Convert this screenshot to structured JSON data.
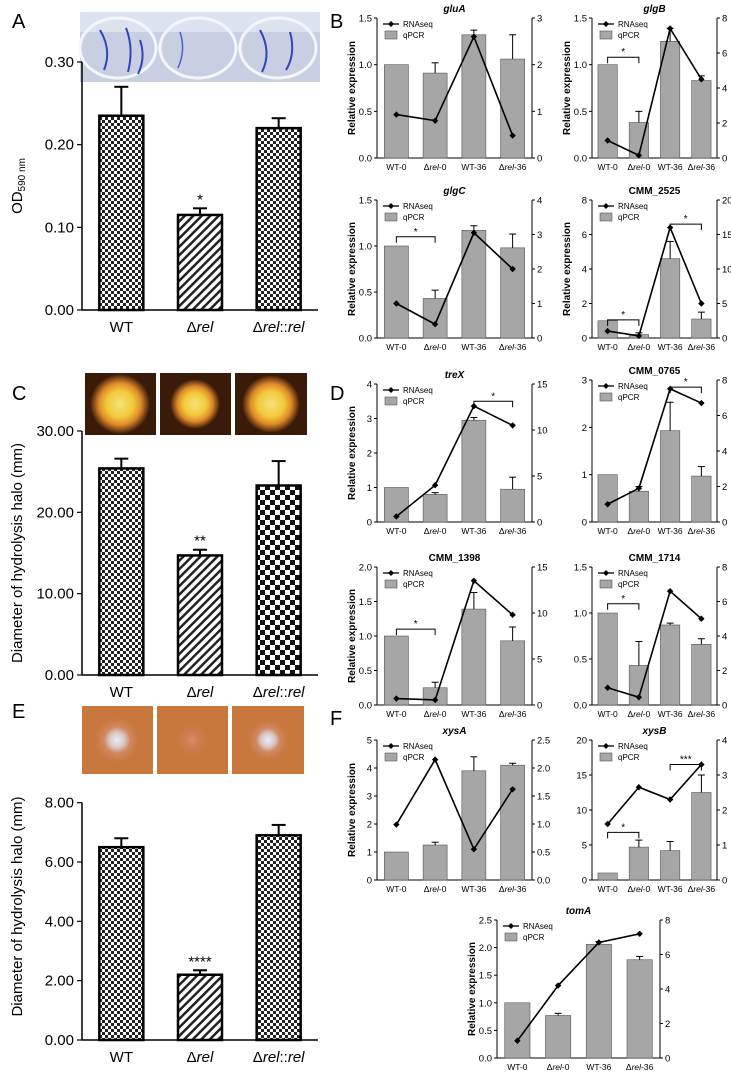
{
  "panel_letters": [
    "A",
    "B",
    "C",
    "D",
    "E",
    "F"
  ],
  "left_panels": [
    {
      "letter": "A",
      "photo": "biofilm-wells-photo",
      "ylabel": "OD590 nm",
      "ylabel_main": "OD",
      "ylabel_sub": "590 nm",
      "yticks": [
        "0.00",
        "0.10",
        "0.20",
        "0.30"
      ],
      "yrange": [
        0,
        0.3
      ],
      "categories": [
        "WT",
        "Δrel",
        "Δrel::rel"
      ],
      "values": [
        0.235,
        0.115,
        0.22
      ],
      "errors": [
        0.035,
        0.008,
        0.012
      ],
      "sig": [
        "",
        "*",
        ""
      ],
      "patterns": [
        "checker-small",
        "hatch",
        "checker-small"
      ]
    },
    {
      "letter": "C",
      "photo": "starch-halo-photos",
      "ylabel": "Diameter of hydrolysis halo (mm)",
      "yticks": [
        "0.00",
        "10.00",
        "20.00",
        "30.00"
      ],
      "yrange": [
        0,
        30
      ],
      "categories": [
        "WT",
        "Δrel",
        "Δrel::rel"
      ],
      "values": [
        25.4,
        14.7,
        23.3
      ],
      "errors": [
        1.2,
        0.7,
        3.0
      ],
      "sig": [
        "",
        "**",
        ""
      ],
      "patterns": [
        "checker-small",
        "hatch",
        "checker-large"
      ]
    },
    {
      "letter": "E",
      "photo": "xylan-halo-photos",
      "ylabel": "Diameter of hydrolysis halo (mm)",
      "yticks": [
        "0.00",
        "2.00",
        "4.00",
        "6.00",
        "8.00"
      ],
      "yrange": [
        0,
        9
      ],
      "categories": [
        "WT",
        "Δrel",
        "Δrel::rel"
      ],
      "values": [
        6.5,
        2.2,
        6.9
      ],
      "errors": [
        0.3,
        0.15,
        0.35
      ],
      "sig": [
        "",
        "****",
        ""
      ],
      "patterns": [
        "checker-small",
        "hatch",
        "checker-small"
      ]
    }
  ],
  "legend": {
    "line": "RNAseq",
    "bar": "qPCR"
  },
  "right_common": {
    "ylabel": "Relative expression",
    "categories": [
      "WT-0",
      "Δrel-0",
      "WT-36",
      "Δrel-36"
    ]
  },
  "chart_data": [
    {
      "type": "bar",
      "title": "gluA",
      "italic": true,
      "panel": "B",
      "ylabel": "Relative expression",
      "categories": [
        "WT-0",
        "Δrel-0",
        "WT-36",
        "Δrel-36"
      ],
      "y_left": {
        "range": [
          0,
          1.5
        ],
        "ticks": [
          "0.0",
          "0.5",
          "1.0",
          "1.5"
        ]
      },
      "y_right": {
        "range": [
          0,
          3
        ],
        "ticks": [
          "0",
          "1",
          "2",
          "3"
        ]
      },
      "series": [
        {
          "name": "qPCR",
          "values": [
            1.0,
            0.91,
            1.32,
            1.06
          ],
          "errors": [
            0,
            0.11,
            0.05,
            0.26
          ]
        },
        {
          "name": "RNAseq",
          "values": [
            0.93,
            0.8,
            2.6,
            0.48
          ]
        }
      ],
      "brackets": []
    },
    {
      "type": "bar",
      "title": "glgB",
      "italic": true,
      "panel": "B",
      "ylabel": "Relative expression",
      "categories": [
        "WT-0",
        "Δrel-0",
        "WT-36",
        "Δrel-36"
      ],
      "y_left": {
        "range": [
          0,
          1.5
        ],
        "ticks": [
          "0.0",
          "0.5",
          "1.0",
          "1.5"
        ]
      },
      "y_right": {
        "range": [
          0,
          8
        ],
        "ticks": [
          "0",
          "2",
          "4",
          "6",
          "8"
        ]
      },
      "series": [
        {
          "name": "qPCR",
          "values": [
            1.0,
            0.38,
            1.25,
            0.83
          ],
          "errors": [
            0,
            0.12,
            0.14,
            0.05
          ]
        },
        {
          "name": "RNAseq",
          "values": [
            1.0,
            0.15,
            7.4,
            4.5
          ]
        }
      ],
      "brackets": [
        {
          "from": 0,
          "to": 1,
          "y": 1.08,
          "label": "*"
        }
      ]
    },
    {
      "type": "bar",
      "title": "glgC",
      "italic": true,
      "panel": "B",
      "ylabel": "Relative expression",
      "categories": [
        "WT-0",
        "Δrel-0",
        "WT-36",
        "Δrel-36"
      ],
      "y_left": {
        "range": [
          0,
          1.5
        ],
        "ticks": [
          "0.0",
          "0.5",
          "1.0",
          "1.5"
        ]
      },
      "y_right": {
        "range": [
          0,
          4
        ],
        "ticks": [
          "0",
          "1",
          "2",
          "3",
          "4"
        ]
      },
      "series": [
        {
          "name": "qPCR",
          "values": [
            1.0,
            0.43,
            1.17,
            0.98
          ],
          "errors": [
            0,
            0.09,
            0.05,
            0.15
          ]
        },
        {
          "name": "RNAseq",
          "values": [
            1.0,
            0.4,
            3.05,
            2.0
          ]
        }
      ],
      "brackets": [
        {
          "from": 0,
          "to": 1,
          "y": 1.1,
          "label": "*"
        }
      ]
    },
    {
      "type": "bar",
      "title": "CMM_2525",
      "italic": false,
      "panel": "B",
      "ylabel": "Relative expression",
      "categories": [
        "WT-0",
        "Δrel-0",
        "WT-36",
        "Δrel-36"
      ],
      "y_left": {
        "range": [
          0,
          8
        ],
        "ticks": [
          "0",
          "2",
          "4",
          "6",
          "8"
        ]
      },
      "y_right": {
        "range": [
          0,
          20
        ],
        "ticks": [
          "0",
          "5",
          "10",
          "15",
          "20"
        ]
      },
      "series": [
        {
          "name": "qPCR",
          "values": [
            1.0,
            0.2,
            4.6,
            1.1
          ],
          "errors": [
            0,
            0.1,
            1.0,
            0.4
          ]
        },
        {
          "name": "RNAseq",
          "values": [
            1.0,
            0.3,
            16.0,
            5.0
          ]
        }
      ],
      "brackets": [
        {
          "from": 0,
          "to": 1,
          "y": 1.05,
          "label": "*"
        },
        {
          "from": 2,
          "to": 3,
          "y": 6.6,
          "label": "*"
        }
      ]
    },
    {
      "type": "bar",
      "title": "treX",
      "italic": true,
      "panel": "D",
      "ylabel": "Relative expression",
      "categories": [
        "WT-0",
        "Δrel-0",
        "WT-36",
        "Δrel-36"
      ],
      "y_left": {
        "range": [
          0,
          4
        ],
        "ticks": [
          "0",
          "1",
          "2",
          "3",
          "4"
        ]
      },
      "y_right": {
        "range": [
          0,
          15
        ],
        "ticks": [
          "0",
          "5",
          "10",
          "15"
        ]
      },
      "series": [
        {
          "name": "qPCR",
          "values": [
            1.0,
            0.8,
            2.95,
            0.95
          ],
          "errors": [
            0,
            0.05,
            0.08,
            0.35
          ]
        },
        {
          "name": "RNAseq",
          "values": [
            0.6,
            4.0,
            12.6,
            10.5
          ]
        }
      ],
      "brackets": [
        {
          "from": 2,
          "to": 3,
          "y": 3.5,
          "label": "*"
        }
      ]
    },
    {
      "type": "bar",
      "title": "CMM_0765",
      "italic": false,
      "panel": "D",
      "ylabel": "",
      "categories": [
        "WT-0",
        "Δrel-0",
        "WT-36",
        "Δrel-36"
      ],
      "y_left": {
        "range": [
          0,
          3
        ],
        "ticks": [
          "0",
          "1",
          "2",
          "3"
        ]
      },
      "y_right": {
        "range": [
          0,
          8
        ],
        "ticks": [
          "0",
          "2",
          "4",
          "6",
          "8"
        ]
      },
      "series": [
        {
          "name": "qPCR",
          "values": [
            1.0,
            0.65,
            1.93,
            0.97
          ],
          "errors": [
            0,
            0.1,
            0.6,
            0.2
          ]
        },
        {
          "name": "RNAseq",
          "values": [
            1.0,
            1.9,
            7.5,
            6.7
          ]
        }
      ],
      "brackets": [
        {
          "from": 2,
          "to": 3,
          "y": 2.85,
          "label": "*"
        }
      ]
    },
    {
      "type": "bar",
      "title": "CMM_1398",
      "italic": false,
      "panel": "D",
      "ylabel": "Relative expression",
      "categories": [
        "WT-0",
        "Δrel-0",
        "WT-36",
        "Δrel-36"
      ],
      "y_left": {
        "range": [
          0,
          2
        ],
        "ticks": [
          "0.0",
          "0.5",
          "1.0",
          "1.5",
          "2.0"
        ]
      },
      "y_right": {
        "range": [
          0,
          15
        ],
        "ticks": [
          "0",
          "5",
          "10",
          "15"
        ]
      },
      "series": [
        {
          "name": "qPCR",
          "values": [
            1.0,
            0.25,
            1.39,
            0.93
          ],
          "errors": [
            0,
            0.08,
            0.24,
            0.2
          ]
        },
        {
          "name": "RNAseq",
          "values": [
            0.7,
            0.55,
            13.5,
            9.8
          ]
        }
      ],
      "brackets": [
        {
          "from": 0,
          "to": 1,
          "y": 1.1,
          "label": "*"
        }
      ]
    },
    {
      "type": "bar",
      "title": "CMM_1714",
      "italic": false,
      "panel": "D",
      "ylabel": "",
      "categories": [
        "WT-0",
        "Δrel-0",
        "WT-36",
        "Δrel-36"
      ],
      "y_left": {
        "range": [
          0,
          1.5
        ],
        "ticks": [
          "0.0",
          "0.5",
          "1.0",
          "1.5"
        ]
      },
      "y_right": {
        "range": [
          0,
          8
        ],
        "ticks": [
          "0",
          "2",
          "4",
          "6",
          "8"
        ]
      },
      "series": [
        {
          "name": "qPCR",
          "values": [
            1.0,
            0.43,
            0.87,
            0.66
          ],
          "errors": [
            0,
            0.26,
            0.02,
            0.06
          ]
        },
        {
          "name": "RNAseq",
          "values": [
            1.0,
            0.45,
            6.6,
            5.0
          ]
        }
      ],
      "brackets": [
        {
          "from": 0,
          "to": 1,
          "y": 1.1,
          "label": "*"
        }
      ]
    },
    {
      "type": "bar",
      "title": "xysA",
      "italic": true,
      "panel": "F",
      "ylabel": "Relative expression",
      "categories": [
        "WT-0",
        "Δrel-0",
        "WT-36",
        "Δrel-36"
      ],
      "y_left": {
        "range": [
          0,
          5
        ],
        "ticks": [
          "0",
          "1",
          "2",
          "3",
          "4",
          "5"
        ]
      },
      "y_right": {
        "range": [
          0,
          2.5
        ],
        "ticks": [
          "0.0",
          "0.5",
          "1.0",
          "1.5",
          "2.0",
          "2.5"
        ]
      },
      "series": [
        {
          "name": "qPCR",
          "values": [
            1.0,
            1.25,
            3.9,
            4.1
          ],
          "errors": [
            0,
            0.1,
            0.5,
            0.07
          ]
        },
        {
          "name": "RNAseq",
          "values": [
            0.99,
            2.15,
            0.55,
            1.62
          ]
        }
      ],
      "brackets": []
    },
    {
      "type": "bar",
      "title": "xysB",
      "italic": true,
      "panel": "F",
      "ylabel": "",
      "categories": [
        "WT-0",
        "Δrel-0",
        "WT-36",
        "Δrel-36"
      ],
      "y_left": {
        "range": [
          0,
          20
        ],
        "ticks": [
          "0",
          "5",
          "10",
          "15",
          "20"
        ]
      },
      "y_right": {
        "range": [
          0,
          4
        ],
        "ticks": [
          "0",
          "1",
          "2",
          "3",
          "4"
        ]
      },
      "series": [
        {
          "name": "qPCR",
          "values": [
            1.0,
            4.7,
            4.2,
            12.5
          ],
          "errors": [
            0,
            1.0,
            1.3,
            2.5
          ]
        },
        {
          "name": "RNAseq",
          "values": [
            1.6,
            2.65,
            2.3,
            3.3
          ]
        }
      ],
      "brackets": [
        {
          "from": 0,
          "to": 1,
          "y": 6.8,
          "label": "*"
        },
        {
          "from": 2,
          "to": 3,
          "y": 16.5,
          "label": "***"
        }
      ]
    },
    {
      "type": "bar",
      "title": "tomA",
      "italic": true,
      "panel": "F",
      "ylabel": "Relative expression",
      "categories": [
        "WT-0",
        "Δrel-0",
        "WT-36",
        "Δrel-36"
      ],
      "y_left": {
        "range": [
          0,
          2.5
        ],
        "ticks": [
          "0.0",
          "0.5",
          "1.0",
          "1.5",
          "2.0",
          "2.5"
        ]
      },
      "y_right": {
        "range": [
          0,
          8
        ],
        "ticks": [
          "0",
          "2",
          "4",
          "6",
          "8"
        ]
      },
      "series": [
        {
          "name": "qPCR",
          "values": [
            1.0,
            0.77,
            2.06,
            1.78
          ],
          "errors": [
            0,
            0.04,
            0.05,
            0.06
          ]
        },
        {
          "name": "RNAseq",
          "values": [
            1.0,
            4.2,
            6.7,
            7.2
          ]
        }
      ],
      "brackets": []
    }
  ],
  "colors": {
    "bar_gray": "#a6a6a6",
    "line": "#000000",
    "photo_blue": "#c9cfe2",
    "starch_bg": "#3a1a08",
    "halo_yellow": "#f2d24a",
    "xylan_bg": "#c8783c"
  }
}
